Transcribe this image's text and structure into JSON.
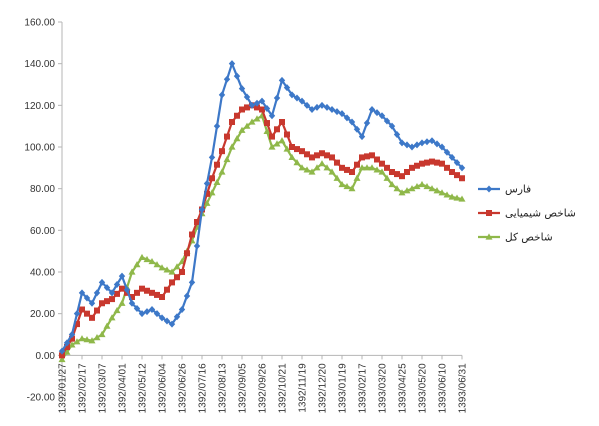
{
  "chart_data": {
    "type": "line",
    "title": "",
    "xlabel": "",
    "ylabel": "",
    "ylim": [
      -20,
      160
    ],
    "y_ticks": [
      "-20.00",
      "0.00",
      "20.00",
      "40.00",
      "60.00",
      "80.00",
      "100.00",
      "120.00",
      "140.00",
      "160.00"
    ],
    "grid": false,
    "legend_position": "right",
    "categories": [
      "1392/01/27",
      "1392/02/17",
      "1392/03/07",
      "1392/04/01",
      "1392/05/12",
      "1392/06/04",
      "1392/06/26",
      "1392/07/16",
      "1392/08/13",
      "1392/09/05",
      "1392/09/26",
      "1392/10/21",
      "1392/11/19",
      "1392/12/20",
      "1393/01/19",
      "1393/02/17",
      "1393/03/20",
      "1393/04/25",
      "1393/05/20",
      "1393/06/10",
      "1393/06/31"
    ],
    "x": [
      0,
      0.5,
      1,
      1.5,
      2,
      2.5,
      3,
      3.5,
      4,
      4.5,
      5,
      5.5,
      6,
      6.5,
      7,
      7.5,
      8,
      8.5,
      9,
      9.5,
      10,
      10.5,
      11,
      11.5,
      12,
      12.5,
      13,
      13.5,
      14,
      14.5,
      15,
      15.5,
      16,
      16.5,
      17,
      17.5,
      18,
      18.5,
      19,
      19.5,
      20
    ],
    "series": [
      {
        "name": "فارس",
        "color": "#3d78c8",
        "marker": "diamond",
        "values": [
          2,
          10,
          30,
          25,
          35,
          30,
          38,
          25,
          20,
          22,
          18,
          15,
          22,
          35,
          70,
          95,
          125,
          140,
          128,
          120,
          122,
          115,
          132,
          125,
          122,
          118,
          120,
          118,
          116,
          112,
          105,
          118,
          115,
          110,
          102,
          100,
          102,
          103,
          100,
          95,
          90
        ]
      },
      {
        "name": "شاخص شیمیایی",
        "color": "#c8382e",
        "marker": "square",
        "values": [
          0,
          8,
          22,
          18,
          25,
          27,
          32,
          28,
          32,
          30,
          28,
          35,
          40,
          58,
          70,
          85,
          98,
          112,
          118,
          120,
          118,
          105,
          112,
          100,
          98,
          95,
          97,
          95,
          90,
          88,
          95,
          96,
          92,
          88,
          86,
          90,
          92,
          93,
          92,
          88,
          85
        ]
      },
      {
        "name": "شاخص کل",
        "color": "#8fb84a",
        "marker": "triangle",
        "values": [
          -2,
          5,
          8,
          7,
          10,
          18,
          25,
          40,
          47,
          45,
          42,
          40,
          45,
          55,
          68,
          78,
          88,
          100,
          108,
          112,
          115,
          100,
          103,
          95,
          90,
          88,
          92,
          88,
          82,
          80,
          90,
          90,
          88,
          82,
          78,
          80,
          82,
          80,
          78,
          76,
          75
        ]
      }
    ]
  }
}
